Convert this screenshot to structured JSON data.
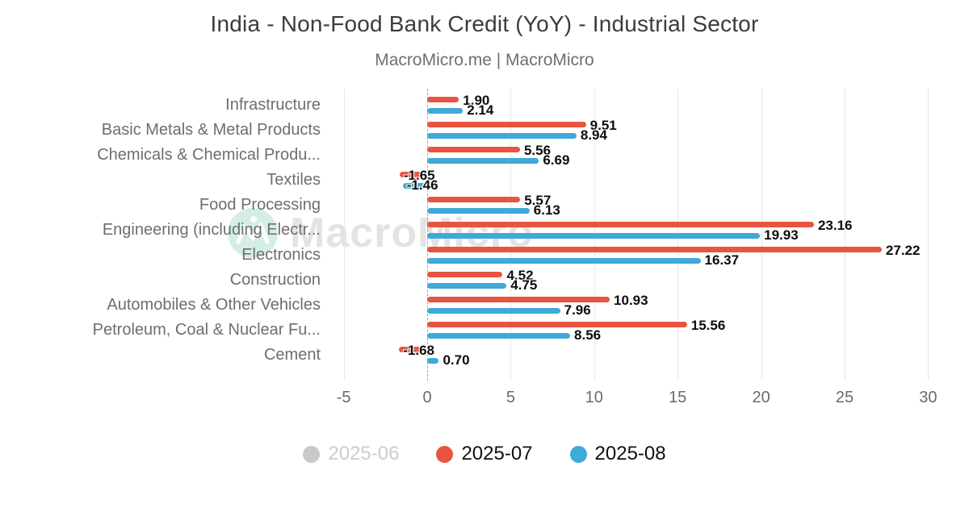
{
  "header": {
    "title": "India - Non-Food Bank Credit (YoY) - Industrial Sector",
    "subtitle": "MacroMicro.me | MacroMicro"
  },
  "watermark": {
    "text": "MacroMicro"
  },
  "colors": {
    "series_2025_06": "#c9c9c9",
    "series_2025_07": "#e8543f",
    "series_2025_08": "#3fa9d8",
    "grid": "#e7e7e7",
    "zero_line": "#a3a3a3"
  },
  "chart_data": {
    "type": "bar",
    "orientation": "horizontal",
    "title": "India - Non-Food Bank Credit (YoY) - Industrial Sector",
    "subtitle": "MacroMicro.me | MacroMicro",
    "xlabel": "",
    "ylabel": "",
    "grid": true,
    "legend_position": "bottom",
    "axis": {
      "ticks": [
        -5,
        0,
        5,
        10,
        15,
        20,
        25,
        30
      ],
      "min": -5.9,
      "max": 30.5
    },
    "categories": [
      "Infrastructure",
      "Basic Metals & Metal Products",
      "Chemicals & Chemical Produ...",
      "Textiles",
      "Food Processing",
      "Engineering (including Electr...",
      "Electronics",
      "Construction",
      "Automobiles & Other Vehicles",
      "Petroleum, Coal & Nuclear Fu...",
      "Cement"
    ],
    "series": [
      {
        "name": "2025-06",
        "color": "#c9c9c9",
        "visible": false,
        "values": null
      },
      {
        "name": "2025-07",
        "color": "#e8543f",
        "visible": true,
        "values": [
          1.9,
          9.51,
          5.56,
          -1.65,
          5.57,
          23.16,
          27.22,
          4.52,
          10.93,
          15.56,
          -1.68
        ]
      },
      {
        "name": "2025-08",
        "color": "#3fa9d8",
        "visible": true,
        "values": [
          2.14,
          8.94,
          6.69,
          -1.46,
          6.13,
          19.93,
          16.37,
          4.75,
          7.96,
          8.56,
          0.7
        ]
      }
    ]
  }
}
